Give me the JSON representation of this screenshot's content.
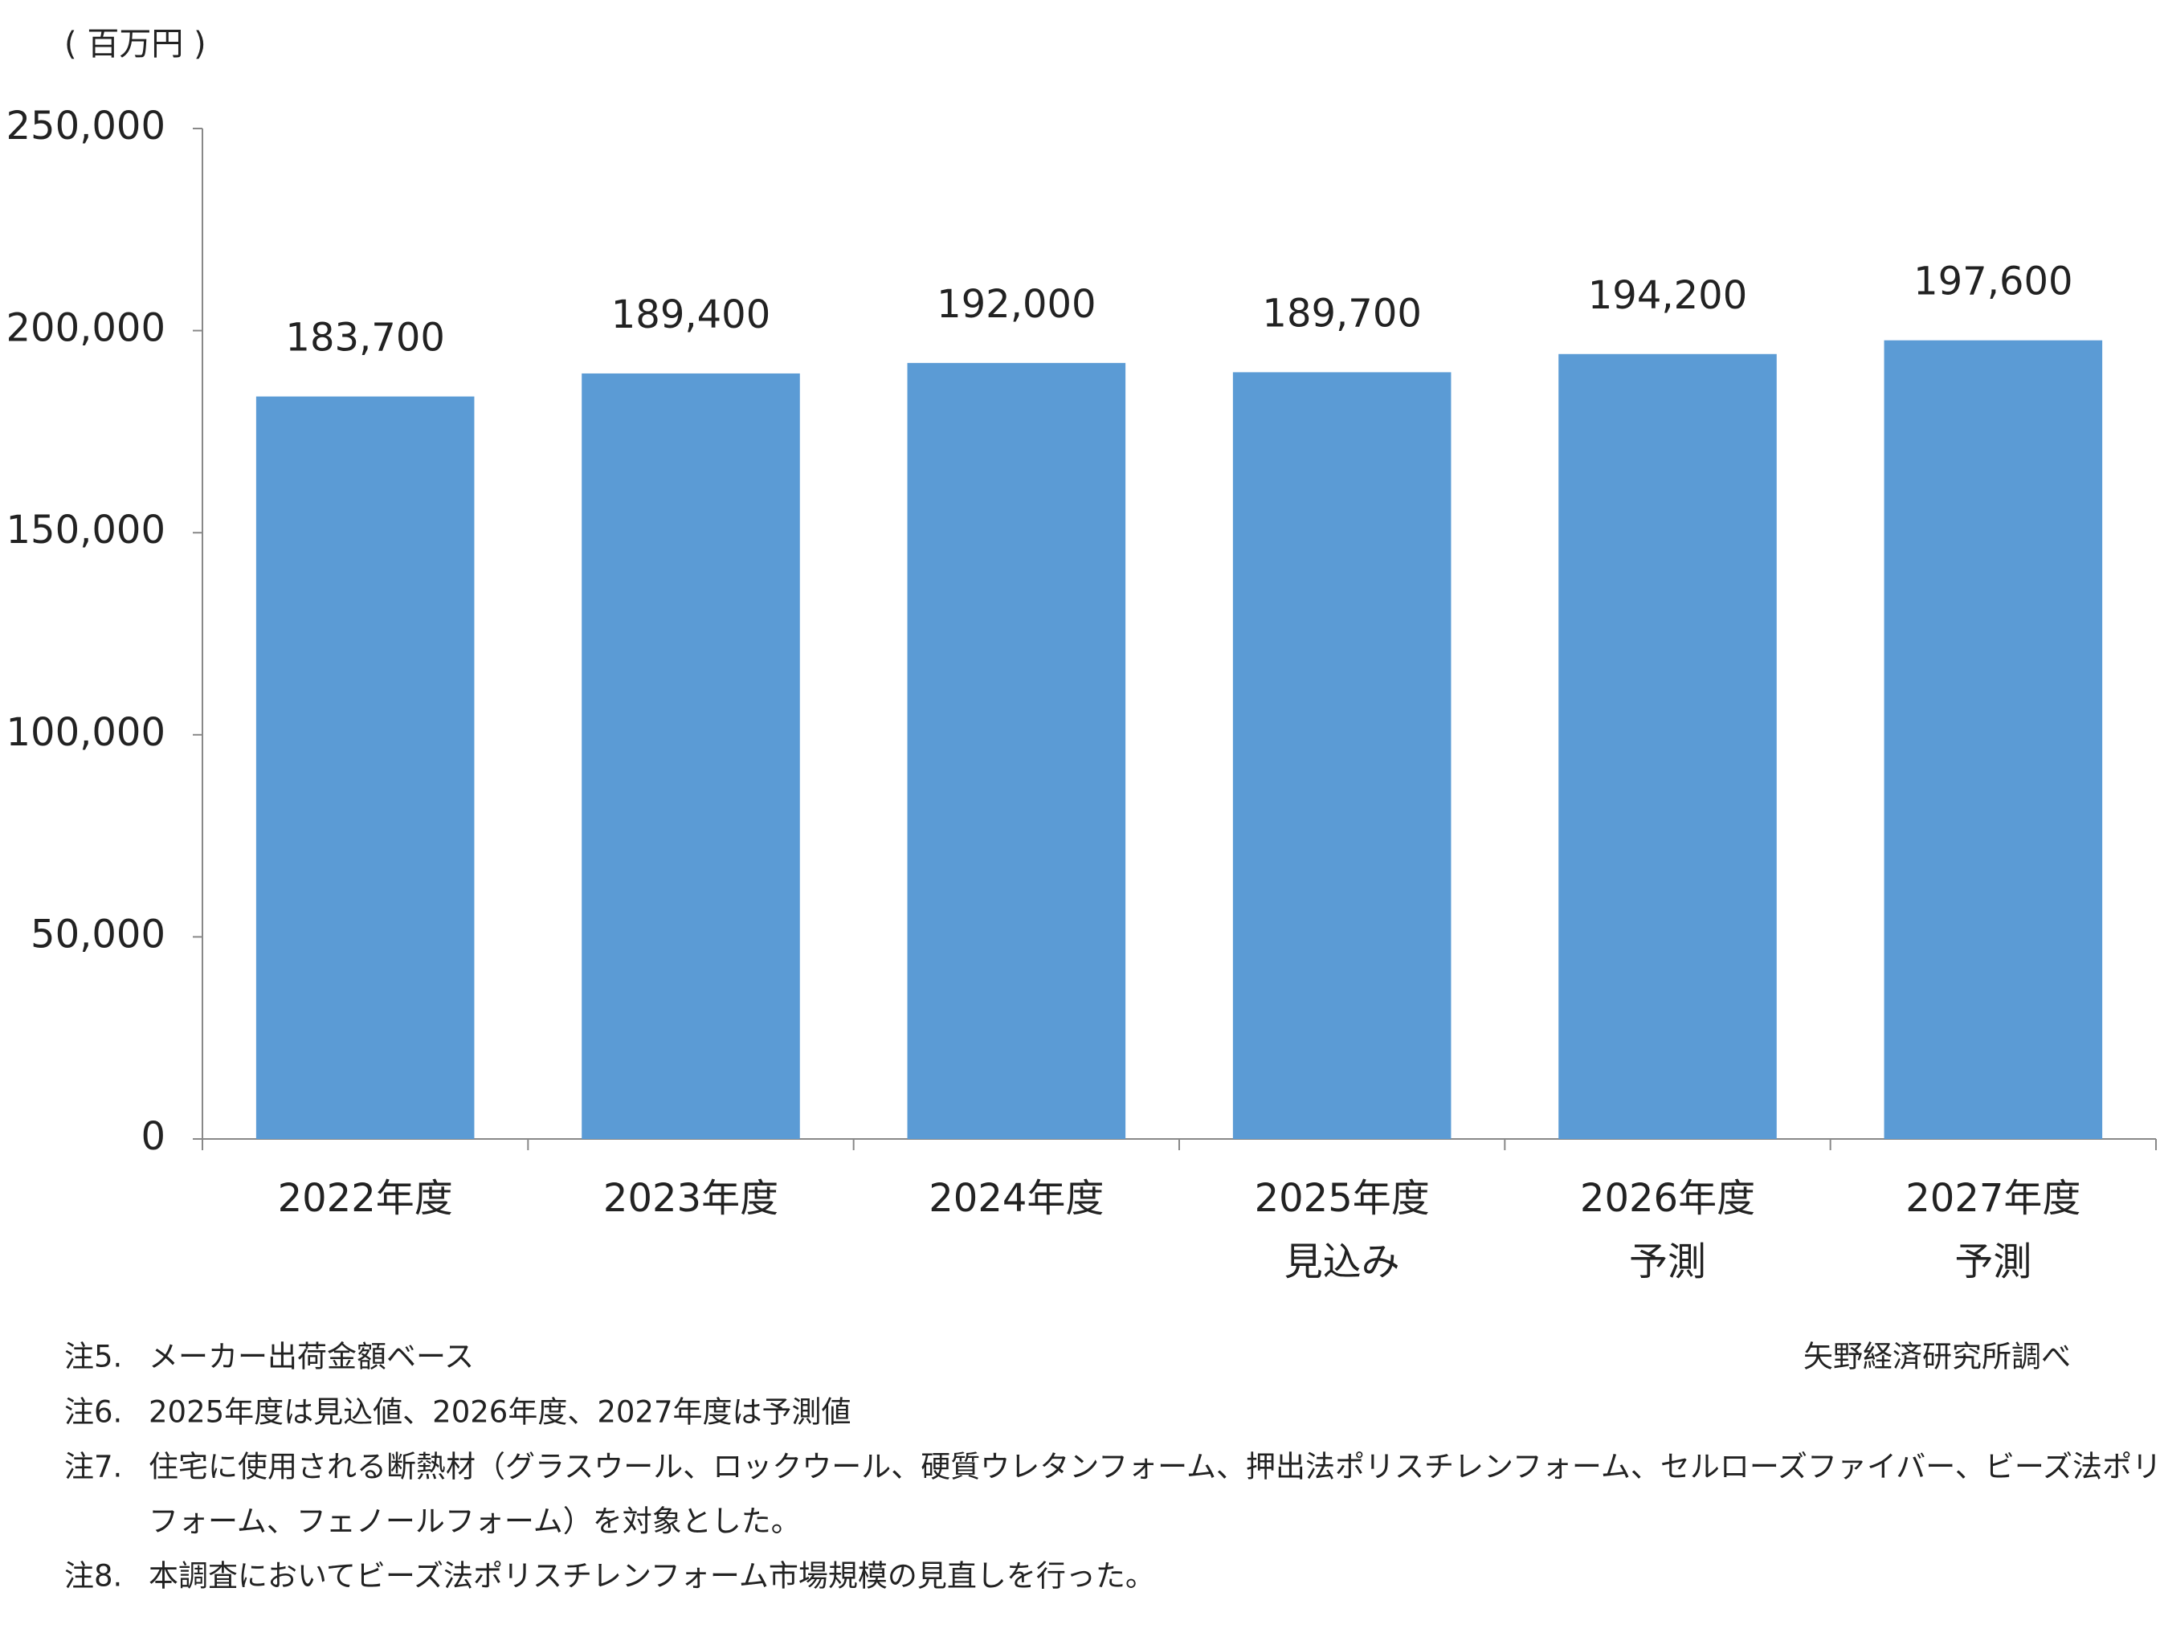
{
  "chart_data": {
    "type": "bar",
    "y_label": "( 百万円 )",
    "categories": [
      [
        "2022年度"
      ],
      [
        "2023年度"
      ],
      [
        "2024年度"
      ],
      [
        "2025年度",
        "見込み"
      ],
      [
        "2026年度",
        "予測"
      ],
      [
        "2027年度",
        "予測"
      ]
    ],
    "values": [
      183700,
      189400,
      192000,
      189700,
      194200,
      197600
    ],
    "value_labels": [
      "183,700",
      "189,400",
      "192,000",
      "189,700",
      "194,200",
      "197,600"
    ],
    "color": "#5b9bd5",
    "ylim": [
      0,
      250000
    ],
    "yticks": [
      0,
      {
        "value": 50000,
        "label": "50,000"
      },
      {
        "value": 100000,
        "label": "100,000"
      },
      {
        "value": 150000,
        "label": "150,000"
      },
      {
        "value": 200000,
        "label": "200,000"
      },
      {
        "value": 250000,
        "label": "250,000"
      }
    ],
    "grid": false
  },
  "source": "矢野経済研究所調べ",
  "notes": [
    {
      "label": "注5.",
      "lines": [
        "メーカー出荷金額ベース"
      ]
    },
    {
      "label": "注6.",
      "lines": [
        "2025年度は見込値、2026年度、2027年度は予測値"
      ]
    },
    {
      "label": "注7.",
      "lines": [
        "住宅に使用される断熱材（グラスウール、ロックウール、硬質ウレタンフォーム、押出法ポリスチレンフォーム、セルローズファイバー、ビーズ法ポリスチレン",
        "フォーム、フェノールフォーム）を対象とした。"
      ]
    },
    {
      "label": "注8.",
      "lines": [
        "本調査においてビーズ法ポリスチレンフォーム市場規模の見直しを行った。"
      ]
    }
  ]
}
